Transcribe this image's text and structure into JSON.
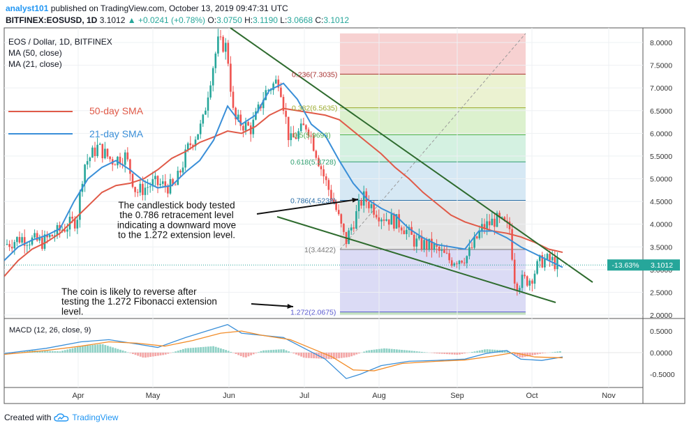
{
  "header": {
    "user": "analyst101",
    "published": "published on TradingView.com, October 13, 2019 09:47:31 UTC",
    "symbol": "BITFINEX:EOSUSD, 1D",
    "last": "3.1012",
    "change": "+0.0241 (+0.78%)",
    "o_label": "O:",
    "o": "3.0750",
    "h_label": "H:",
    "h": "3.1190",
    "l_label": "L:",
    "l": "3.0668",
    "c_label": "C:",
    "c": "3.1012"
  },
  "legend": {
    "title": "EOS / Dollar, 1D, BITFINEX",
    "ma50": "MA (50, close)",
    "ma21": "MA (21, close)",
    "sma50_label": "50-day SMA",
    "sma21_label": "21-day SMA"
  },
  "annotations": {
    "note1": [
      "The candlestick body tested",
      "the 0.786 retracement level",
      "indicating a downward move",
      "to the 1.272 extension level."
    ],
    "note2": [
      "The coin is likely to reverse after",
      "testing the 1.272 Fibonacci extension",
      "level."
    ]
  },
  "price_badge": {
    "pct": "-13.63%",
    "price": "3.1012"
  },
  "footer": {
    "created": "Created with",
    "brand": "TradingView"
  },
  "colors": {
    "up": "#26a69a",
    "down": "#ef5350",
    "sma50": "#e05a48",
    "sma21": "#3a8fd8",
    "trend": "#2e6b2e",
    "macd": "#3a8fd8",
    "signal": "#f28c28"
  },
  "chart_data": {
    "type": "candlestick",
    "price_axis": {
      "ylim": [
        2.0,
        8.2
      ],
      "ticks": [
        "8.0000",
        "7.5000",
        "7.0000",
        "6.5000",
        "6.0000",
        "5.5000",
        "5.0000",
        "4.5000",
        "4.0000",
        "3.5000",
        "3.0000",
        "2.5000",
        "2.0000"
      ]
    },
    "time_axis": {
      "months": [
        "Apr",
        "May",
        "Jun",
        "Jul",
        "Aug",
        "Sep",
        "Oct",
        "Nov"
      ]
    },
    "fib_levels": [
      {
        "label": "0.236(7.3035)",
        "value": 7.3035
      },
      {
        "label": "0.382(6.5635)",
        "value": 6.5635
      },
      {
        "label": "0.5(5.9693)",
        "value": 5.9693
      },
      {
        "label": "0.618(5.3728)",
        "value": 5.3728
      },
      {
        "label": "0.786(4.5238)",
        "value": 4.5238
      },
      {
        "label": "1(3.4422)",
        "value": 3.4422
      },
      {
        "label": "1.272(2.0675)",
        "value": 2.0675
      }
    ],
    "sma50_path": [
      [
        0,
        2.85
      ],
      [
        20,
        3.2
      ],
      [
        40,
        3.45
      ],
      [
        60,
        3.6
      ],
      [
        80,
        3.8
      ],
      [
        100,
        4.1
      ],
      [
        120,
        4.4
      ],
      [
        140,
        4.7
      ],
      [
        160,
        4.85
      ],
      [
        180,
        4.9
      ],
      [
        200,
        5.0
      ],
      [
        220,
        5.2
      ],
      [
        240,
        5.45
      ],
      [
        260,
        5.6
      ],
      [
        280,
        5.8
      ],
      [
        300,
        5.92
      ],
      [
        320,
        6.05
      ],
      [
        340,
        6.0
      ],
      [
        360,
        6.15
      ],
      [
        380,
        6.4
      ],
      [
        400,
        6.55
      ],
      [
        420,
        6.5
      ],
      [
        440,
        6.45
      ],
      [
        460,
        6.4
      ],
      [
        480,
        6.3
      ],
      [
        500,
        6.05
      ],
      [
        520,
        5.8
      ],
      [
        540,
        5.55
      ],
      [
        560,
        5.25
      ],
      [
        580,
        5.0
      ],
      [
        600,
        4.7
      ],
      [
        620,
        4.45
      ],
      [
        640,
        4.2
      ],
      [
        660,
        4.05
      ],
      [
        680,
        3.95
      ],
      [
        700,
        3.85
      ],
      [
        720,
        3.8
      ],
      [
        740,
        3.72
      ],
      [
        760,
        3.6
      ],
      [
        780,
        3.45
      ],
      [
        800,
        3.38
      ]
    ],
    "sma21_path": [
      [
        0,
        3.2
      ],
      [
        20,
        3.5
      ],
      [
        40,
        3.65
      ],
      [
        60,
        3.75
      ],
      [
        80,
        3.9
      ],
      [
        100,
        4.5
      ],
      [
        120,
        5.0
      ],
      [
        140,
        5.25
      ],
      [
        160,
        5.4
      ],
      [
        180,
        5.2
      ],
      [
        200,
        4.95
      ],
      [
        220,
        4.8
      ],
      [
        240,
        4.85
      ],
      [
        260,
        5.15
      ],
      [
        280,
        5.4
      ],
      [
        300,
        5.85
      ],
      [
        320,
        6.6
      ],
      [
        340,
        6.2
      ],
      [
        360,
        6.4
      ],
      [
        380,
        6.95
      ],
      [
        400,
        7.1
      ],
      [
        420,
        6.75
      ],
      [
        440,
        6.2
      ],
      [
        460,
        5.95
      ],
      [
        480,
        5.4
      ],
      [
        500,
        4.9
      ],
      [
        520,
        4.55
      ],
      [
        540,
        4.35
      ],
      [
        560,
        4.2
      ],
      [
        580,
        3.9
      ],
      [
        600,
        3.7
      ],
      [
        620,
        3.55
      ],
      [
        640,
        3.5
      ],
      [
        660,
        3.45
      ],
      [
        680,
        3.85
      ],
      [
        700,
        3.85
      ],
      [
        720,
        3.7
      ],
      [
        740,
        3.5
      ],
      [
        760,
        3.35
      ],
      [
        780,
        3.2
      ],
      [
        800,
        3.05
      ]
    ],
    "macd_axis": {
      "ylim": [
        -0.7,
        0.7
      ],
      "ticks": [
        "0.5000",
        "0.0000",
        "-0.5000"
      ],
      "label": "MACD (12, 26, close, 9)"
    }
  }
}
